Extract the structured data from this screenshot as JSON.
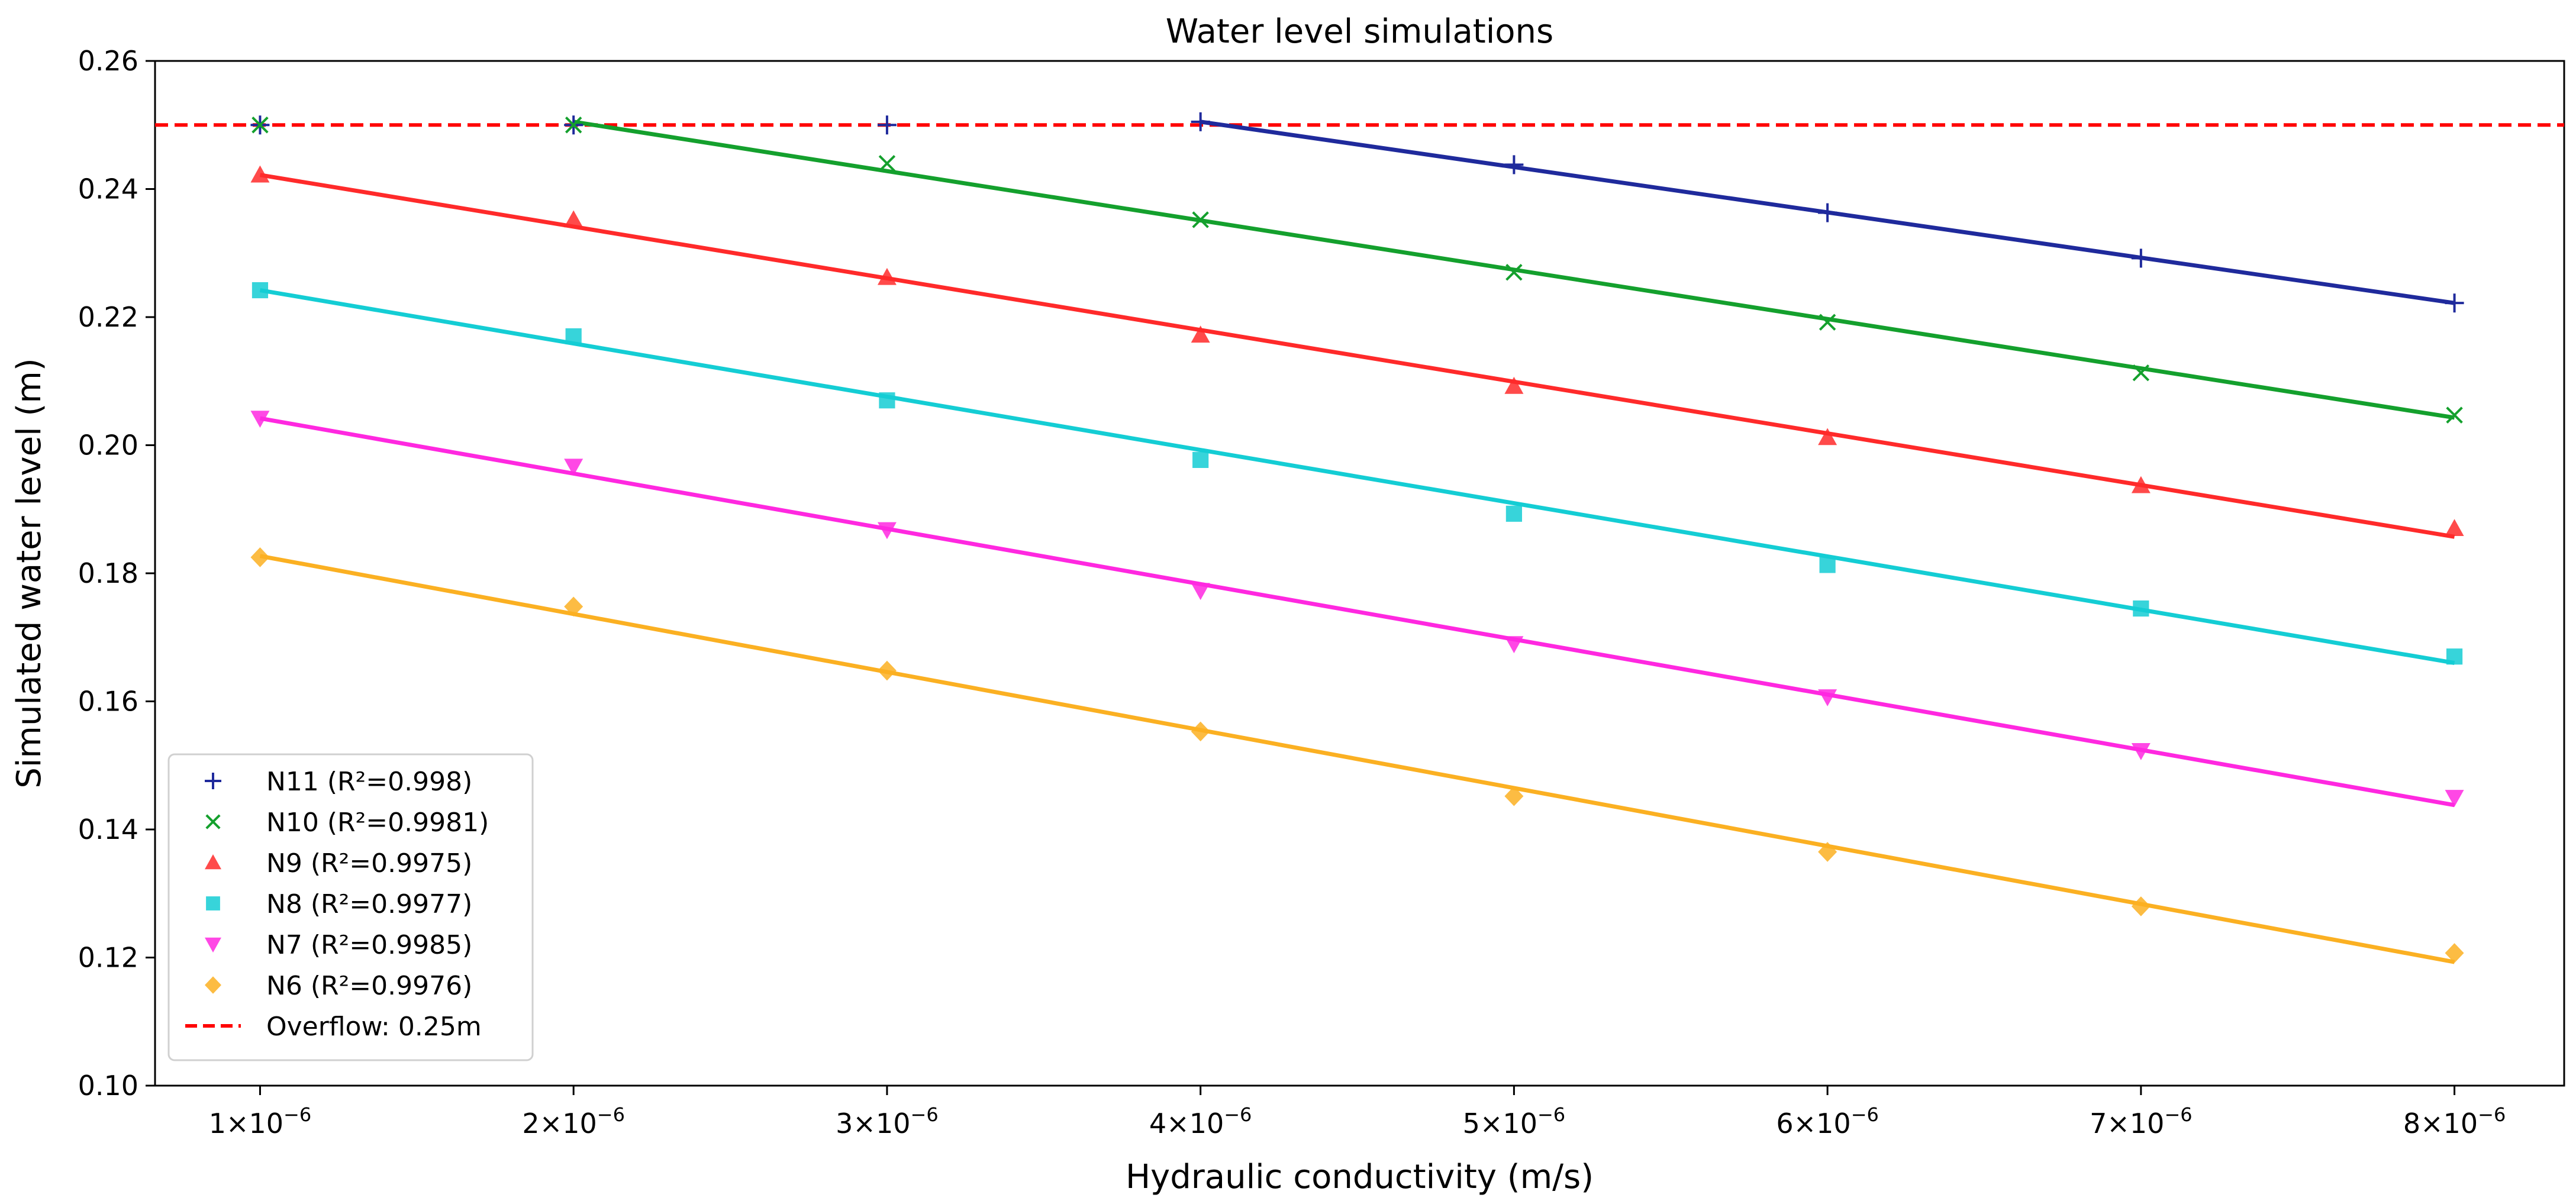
{
  "chart_data": {
    "type": "scatter",
    "title": "Water level simulations",
    "xlabel": "Hydraulic conductivity (m/s)",
    "ylabel": "Simulated water level (m)",
    "x": [
      1e-06,
      2e-06,
      3e-06,
      4e-06,
      5e-06,
      6e-06,
      7e-06,
      8e-06
    ],
    "x_tick_labels": [
      {
        "mant": "1",
        "exp": "−6"
      },
      {
        "mant": "2",
        "exp": "−6"
      },
      {
        "mant": "3",
        "exp": "−6"
      },
      {
        "mant": "4",
        "exp": "−6"
      },
      {
        "mant": "5",
        "exp": "−6"
      },
      {
        "mant": "6",
        "exp": "−6"
      },
      {
        "mant": "7",
        "exp": "−6"
      },
      {
        "mant": "8",
        "exp": "−6"
      }
    ],
    "xlim": [
      6.65e-07,
      8.35e-06
    ],
    "ylim": [
      0.1,
      0.26
    ],
    "y_ticks": [
      0.1,
      0.12,
      0.14,
      0.16,
      0.18,
      0.2,
      0.22,
      0.24,
      0.26
    ],
    "y_tick_labels": [
      "0.10",
      "0.12",
      "0.14",
      "0.16",
      "0.18",
      "0.20",
      "0.22",
      "0.24",
      "0.26"
    ],
    "legend_position": "bottom-left",
    "overflow": {
      "value": 0.25,
      "label": "Overflow: 0.25m",
      "color": "#ff0000"
    },
    "series": [
      {
        "name": "N11 (R²=0.998)",
        "marker": "plus",
        "color": "#1f2a9c",
        "values": [
          0.25,
          0.25,
          0.25,
          0.2505,
          0.2438,
          0.2363,
          0.2292,
          0.2222
        ],
        "fit": {
          "x_start": 4e-06,
          "y_start": 0.2505,
          "x_end": 8e-06,
          "y_end": 0.2222
        }
      },
      {
        "name": "N10 (R²=0.9981)",
        "marker": "x",
        "color": "#14a02d",
        "values": [
          0.25,
          0.25,
          0.244,
          0.2352,
          0.227,
          0.2192,
          0.2113,
          0.2047
        ],
        "fit": {
          "x_start": 2e-06,
          "y_start": 0.2505,
          "x_end": 8e-06,
          "y_end": 0.2043
        }
      },
      {
        "name": "N9 (R²=0.9975)",
        "marker": "triangle-up",
        "color": "#ff2a2a",
        "values": [
          0.2422,
          0.2352,
          0.2262,
          0.2172,
          0.2092,
          0.2012,
          0.1937,
          0.187
        ],
        "fit": {
          "x_start": 1e-06,
          "y_start": 0.2422,
          "x_end": 8e-06,
          "y_end": 0.1857
        }
      },
      {
        "name": "N8 (R²=0.9977)",
        "marker": "square",
        "color": "#14cdd4",
        "values": [
          0.2242,
          0.217,
          0.207,
          0.1977,
          0.1893,
          0.1813,
          0.1745,
          0.167
        ],
        "fit": {
          "x_start": 1e-06,
          "y_start": 0.2242,
          "x_end": 8e-06,
          "y_end": 0.166
        }
      },
      {
        "name": "N7 (R²=0.9985)",
        "marker": "triangle-down",
        "color": "#ff28e0",
        "values": [
          0.2042,
          0.1967,
          0.1868,
          0.1773,
          0.169,
          0.1607,
          0.1523,
          0.145
        ],
        "fit": {
          "x_start": 1e-06,
          "y_start": 0.2042,
          "x_end": 8e-06,
          "y_end": 0.1438
        }
      },
      {
        "name": "N6 (R²=0.9976)",
        "marker": "diamond",
        "color": "#fbb022",
        "values": [
          0.1825,
          0.1748,
          0.1648,
          0.1553,
          0.1452,
          0.1365,
          0.128,
          0.1207
        ],
        "fit": {
          "x_start": 1e-06,
          "y_start": 0.1827,
          "x_end": 8e-06,
          "y_end": 0.1193
        }
      }
    ]
  }
}
